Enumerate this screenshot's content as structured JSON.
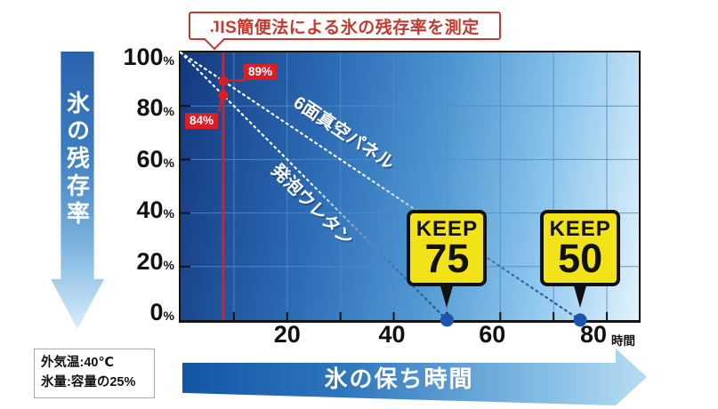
{
  "title": "JIS簡便法による氷の残存率を測定",
  "y_axis_arrow_label": "氷の残存率",
  "x_axis_arrow_label": "氷の保ち時間",
  "x_axis_unit": "時間",
  "conditions": [
    "外気温:40℃",
    "氷量:容量の25%"
  ],
  "keep_badges": [
    {
      "top": "KEEP",
      "value": "50"
    },
    {
      "top": "KEEP",
      "value": "75"
    }
  ],
  "measurement_labels": [
    "89%",
    "84%"
  ],
  "colors": {
    "plot_grid": "#4d8ec9",
    "measure_red": "#c22737",
    "label_red": "#d81f26",
    "dot_blue": "#1c55ae",
    "badge_yellow": "#f2e318",
    "title_red": "#c5392e",
    "series_line_light": "#ffffff",
    "series_line_dark": "#1d4c92"
  },
  "chart_data": {
    "type": "line",
    "title": "JIS簡便法による氷の残存率を測定",
    "xlabel": "時間",
    "ylabel": "氷の残存率",
    "x_axis_title": "氷の保ち時間",
    "xlim": [
      0,
      86
    ],
    "ylim": [
      0,
      100
    ],
    "x_ticks": [
      20,
      40,
      60,
      80
    ],
    "y_ticks": [
      100,
      80,
      60,
      40,
      20,
      0
    ],
    "x_grid_step": 10,
    "y_grid_step": 20,
    "grid": true,
    "measurement_line_x": 8,
    "series": [
      {
        "name": "6面真空パネル",
        "points": [
          [
            0,
            100
          ],
          [
            75,
            0
          ]
        ],
        "keep_hours": 75,
        "value_at_measurement_pct": 89
      },
      {
        "name": "発泡ウレタン",
        "points": [
          [
            0,
            100
          ],
          [
            50,
            0
          ]
        ],
        "keep_hours": 50,
        "value_at_measurement_pct": 84
      }
    ],
    "conditions": [
      "外気温:40℃",
      "氷量:容量の25%"
    ]
  }
}
